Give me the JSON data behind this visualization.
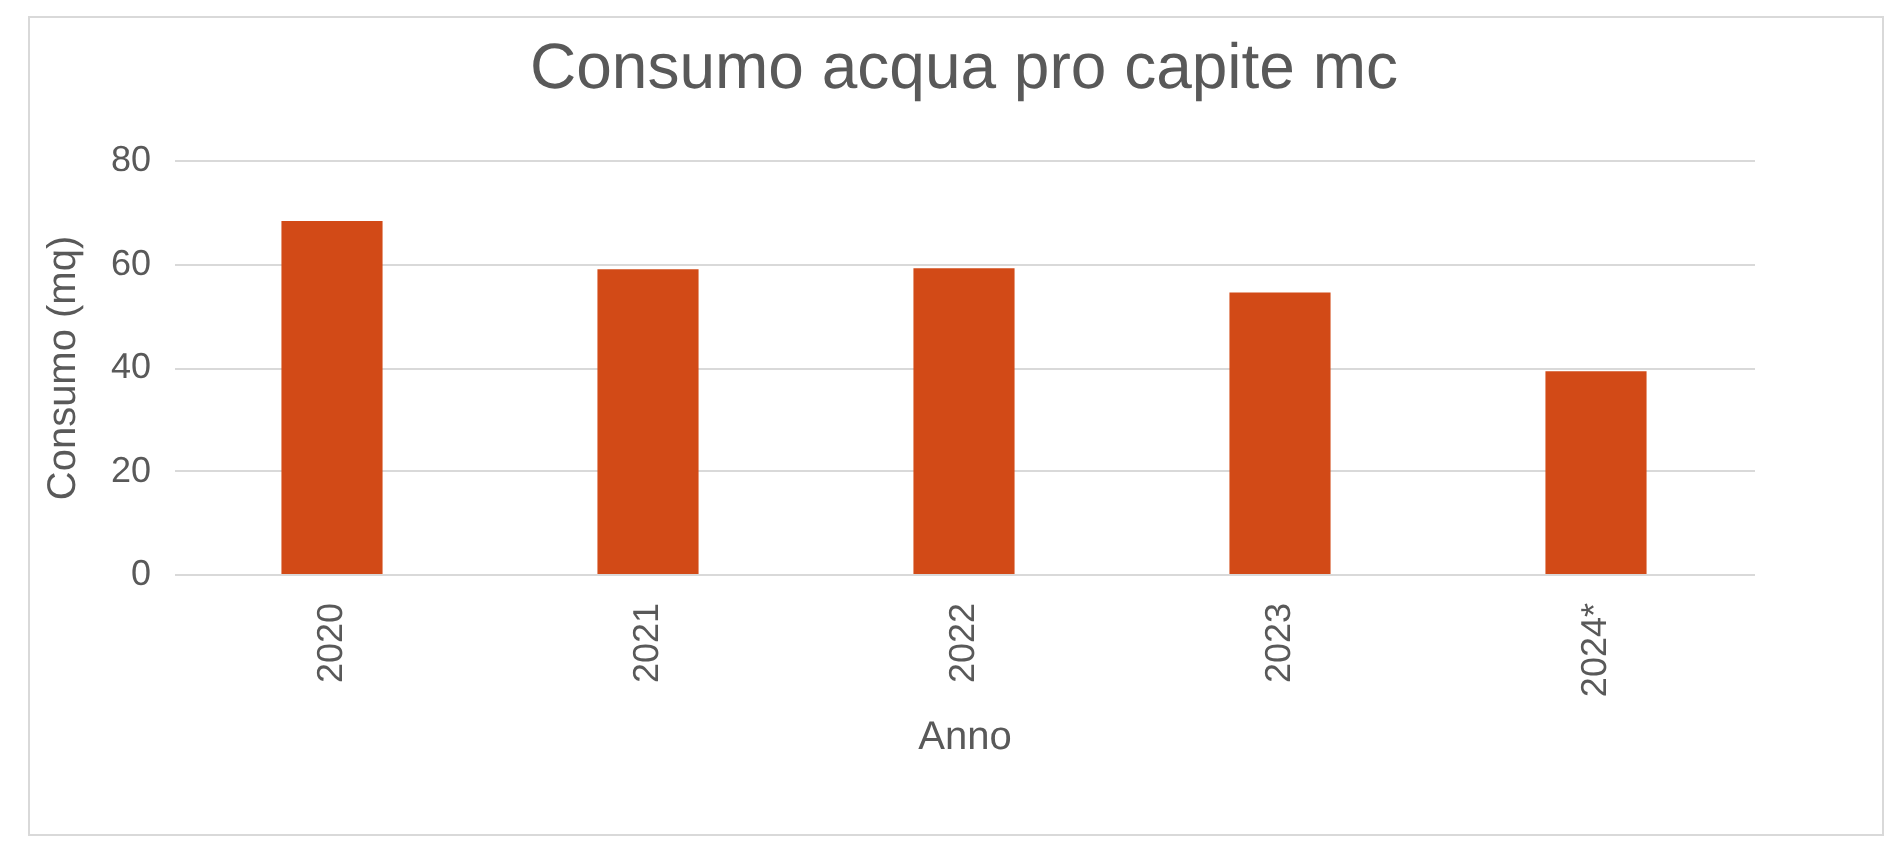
{
  "chart_data": {
    "type": "bar",
    "title": "Consumo acqua pro capite mc",
    "xlabel": "Anno",
    "ylabel": "Consumo (mq)",
    "categories": [
      "2020",
      "2021",
      "2022",
      "2023",
      "2024*"
    ],
    "values": [
      68.2,
      58.9,
      59.1,
      54.4,
      39.2
    ],
    "color": "#d24a17",
    "ylim": [
      0,
      80
    ],
    "yticks": [
      0,
      20,
      40,
      60,
      80
    ],
    "grid": "y"
  }
}
